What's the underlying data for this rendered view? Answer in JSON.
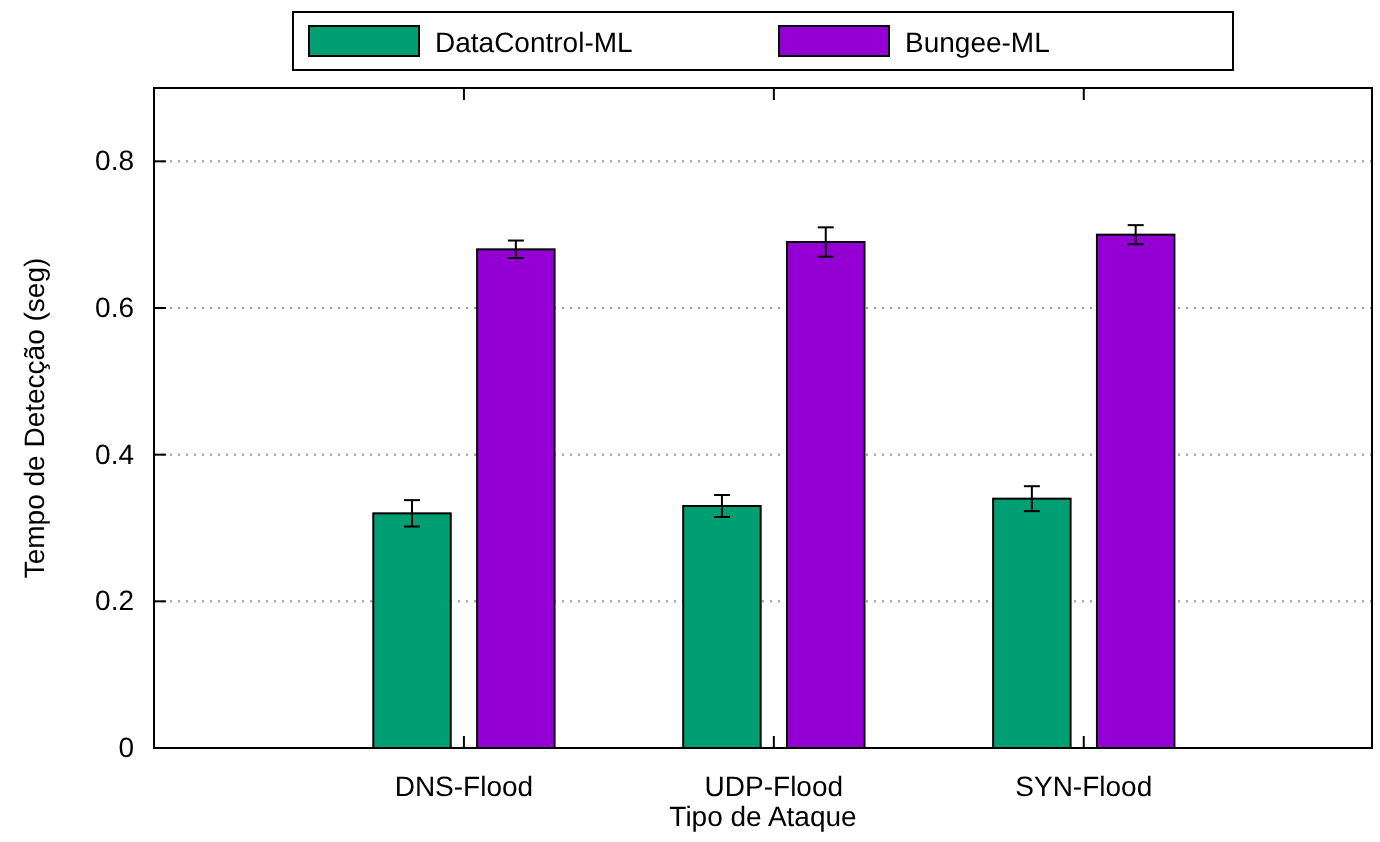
{
  "chart_data": {
    "type": "bar",
    "xlabel": "Tipo de Ataque",
    "ylabel": "Tempo de Detecção (seg)",
    "categories": [
      "DNS-Flood",
      "UDP-Flood",
      "SYN-Flood"
    ],
    "series": [
      {
        "name": "DataControl-ML",
        "color": "#009e73",
        "values": [
          0.32,
          0.33,
          0.34
        ],
        "errors": [
          0.018,
          0.015,
          0.017
        ]
      },
      {
        "name": "Bungee-ML",
        "color": "#9400d3",
        "values": [
          0.68,
          0.69,
          0.7
        ],
        "errors": [
          0.012,
          0.02,
          0.013
        ]
      }
    ],
    "ylim": [
      0,
      0.9
    ],
    "yticks": [
      0,
      0.2,
      0.4,
      0.6,
      0.8
    ],
    "grid": "y",
    "legend": "top"
  }
}
